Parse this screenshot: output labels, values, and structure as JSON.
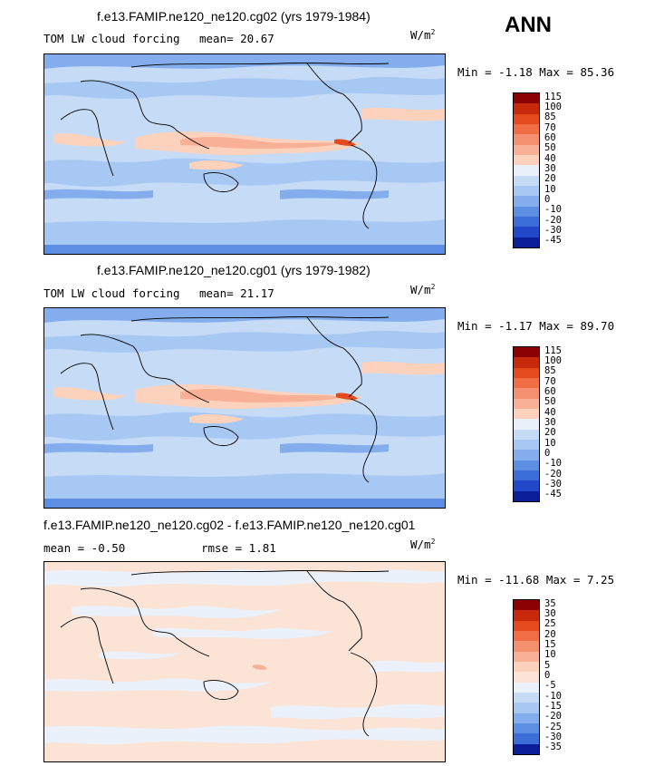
{
  "season": "ANN",
  "units": "W/m",
  "units_sup": "2",
  "panels": [
    {
      "title": "f.e13.FAMIP.ne120_ne120.cg02 (yrs 1979-1984)",
      "subtitle": "TOM LW cloud forcing",
      "stat": "mean=  20.67",
      "stat2": "",
      "minmax": "Min =  -1.18 Max =  85.36",
      "levels": [
        "115",
        "100",
        "85",
        "70",
        "60",
        "50",
        "40",
        "30",
        "20",
        "10",
        "0",
        "-10",
        "-20",
        "-30",
        "-45"
      ],
      "colors": [
        "#8b0000",
        "#c8290c",
        "#e44a1d",
        "#f06d46",
        "#f4906f",
        "#f8b197",
        "#fcd2bd",
        "#eaf1fb",
        "#c5dbf6",
        "#a7c8f2",
        "#83adec",
        "#5c8ee3",
        "#3c6ed9",
        "#2048c9",
        "#0b1e9a"
      ]
    },
    {
      "title": "f.e13.FAMIP.ne120_ne120.cg01 (yrs 1979-1982)",
      "subtitle": "TOM LW cloud forcing",
      "stat": "mean=  21.17",
      "stat2": "",
      "minmax": "Min =  -1.17 Max =  89.70",
      "levels": [
        "115",
        "100",
        "85",
        "70",
        "60",
        "50",
        "40",
        "30",
        "20",
        "10",
        "0",
        "-10",
        "-20",
        "-30",
        "-45"
      ],
      "colors": [
        "#8b0000",
        "#c8290c",
        "#e44a1d",
        "#f06d46",
        "#f4906f",
        "#f8b197",
        "#fcd2bd",
        "#eaf1fb",
        "#c5dbf6",
        "#a7c8f2",
        "#83adec",
        "#5c8ee3",
        "#3c6ed9",
        "#2048c9",
        "#0b1e9a"
      ]
    },
    {
      "title": "f.e13.FAMIP.ne120_ne120.cg02 - f.e13.FAMIP.ne120_ne120.cg01",
      "subtitle": "mean =  -0.50",
      "stat": "rmse =   1.81",
      "stat2": "",
      "minmax": "Min = -11.68 Max =   7.25",
      "levels": [
        "35",
        "30",
        "25",
        "20",
        "15",
        "10",
        "5",
        "0",
        "-5",
        "-10",
        "-15",
        "-20",
        "-25",
        "-30",
        "-35"
      ],
      "colors": [
        "#8b0000",
        "#c8290c",
        "#e44a1d",
        "#f06d46",
        "#f4906f",
        "#f8b197",
        "#fcd2bd",
        "#fbe4d6",
        "#eaf1fb",
        "#c5dbf6",
        "#a7c8f2",
        "#83adec",
        "#5c8ee3",
        "#3c6ed9",
        "#0b1e9a"
      ]
    }
  ]
}
